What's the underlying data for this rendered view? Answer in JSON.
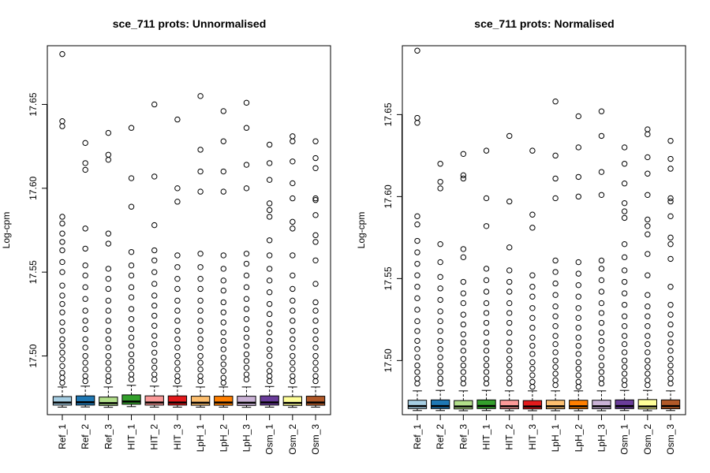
{
  "chart_data": [
    {
      "type": "boxplot",
      "title": "sce_711 prots: Unnormalised",
      "ylabel": "Log-cpm",
      "ylim": [
        17.465,
        17.685
      ],
      "yticks": [
        17.5,
        17.55,
        17.6,
        17.65
      ],
      "ytick_labels": [
        "17.50",
        "17.55",
        "17.60",
        "17.65"
      ],
      "categories": [
        "Ref_1",
        "Ref_2",
        "Ref_3",
        "HIT_1",
        "HIT_2",
        "HIT_3",
        "LpH_1",
        "LpH_2",
        "LpH_3",
        "Osm_1",
        "Osm_2",
        "Osm_3"
      ],
      "box_colors": [
        "#a6cee3",
        "#1f78b4",
        "#b2df8a",
        "#33a02c",
        "#fb9a99",
        "#e31a1c",
        "#fdbf6f",
        "#ff7f00",
        "#cab2d6",
        "#6a3d9a",
        "#ffff99",
        "#b15928"
      ],
      "grid": false,
      "series": [
        {
          "q1": 17.4707,
          "median": 17.4722,
          "q3": 17.4758,
          "whisker_low": 17.4695,
          "whisker_high": 17.4815,
          "outliers": [
            17.68,
            17.64,
            17.637,
            17.583,
            17.579,
            17.573,
            17.568,
            17.563,
            17.556,
            17.55,
            17.542,
            17.536,
            17.531,
            17.526,
            17.52,
            17.515,
            17.51,
            17.506,
            17.502,
            17.498,
            17.494,
            17.49,
            17.487,
            17.484
          ]
        },
        {
          "q1": 17.4707,
          "median": 17.4724,
          "q3": 17.4762,
          "whisker_low": 17.4696,
          "whisker_high": 17.482,
          "outliers": [
            17.627,
            17.615,
            17.611,
            17.576,
            17.564,
            17.554,
            17.548,
            17.541,
            17.534,
            17.527,
            17.521,
            17.516,
            17.51,
            17.505,
            17.5,
            17.496,
            17.492,
            17.488,
            17.485
          ]
        },
        {
          "q1": 17.4705,
          "median": 17.4719,
          "q3": 17.4755,
          "whisker_low": 17.4694,
          "whisker_high": 17.4815,
          "outliers": [
            17.633,
            17.62,
            17.617,
            17.573,
            17.567,
            17.552,
            17.546,
            17.54,
            17.533,
            17.527,
            17.521,
            17.515,
            17.51,
            17.505,
            17.5,
            17.496,
            17.492,
            17.488,
            17.485
          ]
        },
        {
          "q1": 17.4712,
          "median": 17.4728,
          "q3": 17.4768,
          "whisker_low": 17.4698,
          "whisker_high": 17.4825,
          "outliers": [
            17.636,
            17.606,
            17.589,
            17.562,
            17.554,
            17.548,
            17.541,
            17.535,
            17.528,
            17.522,
            17.516,
            17.511,
            17.506,
            17.501,
            17.497,
            17.493,
            17.489,
            17.486
          ]
        },
        {
          "q1": 17.4707,
          "median": 17.4722,
          "q3": 17.4762,
          "whisker_low": 17.4695,
          "whisker_high": 17.482,
          "outliers": [
            17.65,
            17.607,
            17.578,
            17.563,
            17.557,
            17.55,
            17.543,
            17.536,
            17.53,
            17.524,
            17.518,
            17.512,
            17.507,
            17.502,
            17.497,
            17.493,
            17.489,
            17.486
          ]
        },
        {
          "q1": 17.4707,
          "median": 17.4722,
          "q3": 17.4762,
          "whisker_low": 17.4695,
          "whisker_high": 17.482,
          "outliers": [
            17.641,
            17.6,
            17.592,
            17.56,
            17.553,
            17.546,
            17.54,
            17.533,
            17.527,
            17.521,
            17.515,
            17.51,
            17.505,
            17.5,
            17.496,
            17.492,
            17.488,
            17.485
          ]
        },
        {
          "q1": 17.4706,
          "median": 17.4721,
          "q3": 17.476,
          "whisker_low": 17.4695,
          "whisker_high": 17.4815,
          "outliers": [
            17.655,
            17.623,
            17.61,
            17.598,
            17.561,
            17.553,
            17.546,
            17.54,
            17.533,
            17.527,
            17.521,
            17.515,
            17.51,
            17.505,
            17.5,
            17.496,
            17.492,
            17.488,
            17.485
          ]
        },
        {
          "q1": 17.4706,
          "median": 17.4722,
          "q3": 17.476,
          "whisker_low": 17.4695,
          "whisker_high": 17.4815,
          "outliers": [
            17.646,
            17.628,
            17.61,
            17.598,
            17.56,
            17.552,
            17.545,
            17.539,
            17.532,
            17.526,
            17.52,
            17.514,
            17.509,
            17.504,
            17.499,
            17.495,
            17.491,
            17.487,
            17.484
          ]
        },
        {
          "q1": 17.4705,
          "median": 17.4721,
          "q3": 17.476,
          "whisker_low": 17.4694,
          "whisker_high": 17.4815,
          "outliers": [
            17.651,
            17.636,
            17.614,
            17.6,
            17.561,
            17.555,
            17.548,
            17.541,
            17.534,
            17.528,
            17.522,
            17.516,
            17.511,
            17.506,
            17.501,
            17.497,
            17.493,
            17.489,
            17.486
          ]
        },
        {
          "q1": 17.4707,
          "median": 17.4723,
          "q3": 17.4762,
          "whisker_low": 17.4695,
          "whisker_high": 17.4818,
          "outliers": [
            17.626,
            17.615,
            17.605,
            17.591,
            17.587,
            17.583,
            17.569,
            17.56,
            17.552,
            17.545,
            17.538,
            17.531,
            17.525,
            17.519,
            17.514,
            17.509,
            17.504,
            17.5,
            17.495,
            17.491,
            17.488,
            17.485
          ]
        },
        {
          "q1": 17.4705,
          "median": 17.472,
          "q3": 17.4758,
          "whisker_low": 17.4694,
          "whisker_high": 17.4815,
          "outliers": [
            17.631,
            17.628,
            17.616,
            17.603,
            17.594,
            17.58,
            17.576,
            17.56,
            17.548,
            17.54,
            17.533,
            17.527,
            17.521,
            17.515,
            17.51,
            17.505,
            17.5,
            17.496,
            17.492,
            17.488,
            17.485
          ]
        },
        {
          "q1": 17.4706,
          "median": 17.4722,
          "q3": 17.476,
          "whisker_low": 17.4695,
          "whisker_high": 17.4815,
          "outliers": [
            17.628,
            17.618,
            17.612,
            17.594,
            17.593,
            17.584,
            17.572,
            17.568,
            17.557,
            17.543,
            17.532,
            17.527,
            17.521,
            17.515,
            17.51,
            17.505,
            17.5,
            17.496,
            17.492,
            17.488,
            17.485
          ]
        }
      ]
    },
    {
      "type": "boxplot",
      "title": "sce_711 prots: Normalised",
      "ylabel": "Log-cpm",
      "ylim": [
        17.467,
        17.692
      ],
      "yticks": [
        17.5,
        17.55,
        17.6,
        17.65
      ],
      "ytick_labels": [
        "17.50",
        "17.55",
        "17.60",
        "17.65"
      ],
      "categories": [
        "Ref_1",
        "Ref_2",
        "Ref_3",
        "HIT_1",
        "HIT_2",
        "HIT_3",
        "LpH_1",
        "LpH_2",
        "LpH_3",
        "Osm_1",
        "Osm_2",
        "Osm_3"
      ],
      "box_colors": [
        "#a6cee3",
        "#1f78b4",
        "#b2df8a",
        "#33a02c",
        "#fb9a99",
        "#e31a1c",
        "#fdbf6f",
        "#ff7f00",
        "#cab2d6",
        "#6a3d9a",
        "#ffff99",
        "#b15928"
      ],
      "grid": false,
      "series": [
        {
          "q1": 17.4707,
          "median": 17.4722,
          "q3": 17.4758,
          "whisker_low": 17.4695,
          "whisker_high": 17.4815,
          "outliers": [
            17.689,
            17.648,
            17.645,
            17.588,
            17.583,
            17.573,
            17.566,
            17.559,
            17.552,
            17.545,
            17.538,
            17.531,
            17.524,
            17.518,
            17.512,
            17.507,
            17.502,
            17.497,
            17.493,
            17.489,
            17.486
          ]
        },
        {
          "q1": 17.4707,
          "median": 17.4722,
          "q3": 17.476,
          "whisker_low": 17.4695,
          "whisker_high": 17.4818,
          "outliers": [
            17.62,
            17.609,
            17.605,
            17.571,
            17.56,
            17.551,
            17.544,
            17.537,
            17.53,
            17.524,
            17.518,
            17.512,
            17.507,
            17.502,
            17.497,
            17.493,
            17.489,
            17.486
          ]
        },
        {
          "q1": 17.4705,
          "median": 17.472,
          "q3": 17.4756,
          "whisker_low": 17.4694,
          "whisker_high": 17.4815,
          "outliers": [
            17.626,
            17.613,
            17.611,
            17.568,
            17.563,
            17.548,
            17.541,
            17.535,
            17.528,
            17.522,
            17.516,
            17.511,
            17.506,
            17.501,
            17.497,
            17.493,
            17.489,
            17.486
          ]
        },
        {
          "q1": 17.4707,
          "median": 17.4723,
          "q3": 17.476,
          "whisker_low": 17.4695,
          "whisker_high": 17.4818,
          "outliers": [
            17.628,
            17.599,
            17.582,
            17.556,
            17.549,
            17.542,
            17.535,
            17.529,
            17.523,
            17.517,
            17.511,
            17.506,
            17.501,
            17.497,
            17.493,
            17.489,
            17.486
          ]
        },
        {
          "q1": 17.4706,
          "median": 17.4721,
          "q3": 17.4758,
          "whisker_low": 17.4694,
          "whisker_high": 17.4815,
          "outliers": [
            17.637,
            17.597,
            17.569,
            17.555,
            17.548,
            17.542,
            17.535,
            17.529,
            17.523,
            17.517,
            17.511,
            17.506,
            17.501,
            17.497,
            17.493,
            17.489,
            17.486
          ]
        },
        {
          "q1": 17.4705,
          "median": 17.472,
          "q3": 17.4756,
          "whisker_low": 17.4694,
          "whisker_high": 17.4815,
          "outliers": [
            17.628,
            17.589,
            17.581,
            17.552,
            17.545,
            17.539,
            17.532,
            17.526,
            17.52,
            17.514,
            17.509,
            17.504,
            17.499,
            17.495,
            17.491,
            17.487,
            17.484
          ]
        },
        {
          "q1": 17.4706,
          "median": 17.4721,
          "q3": 17.4758,
          "whisker_low": 17.4694,
          "whisker_high": 17.4815,
          "outliers": [
            17.658,
            17.625,
            17.611,
            17.599,
            17.561,
            17.554,
            17.547,
            17.54,
            17.533,
            17.527,
            17.521,
            17.515,
            17.51,
            17.505,
            17.5,
            17.496,
            17.492,
            17.488,
            17.485
          ]
        },
        {
          "q1": 17.4706,
          "median": 17.4721,
          "q3": 17.4758,
          "whisker_low": 17.4694,
          "whisker_high": 17.4815,
          "outliers": [
            17.649,
            17.63,
            17.612,
            17.6,
            17.56,
            17.553,
            17.546,
            17.539,
            17.532,
            17.526,
            17.52,
            17.514,
            17.509,
            17.504,
            17.499,
            17.495,
            17.491,
            17.487,
            17.484
          ]
        },
        {
          "q1": 17.4706,
          "median": 17.4721,
          "q3": 17.4758,
          "whisker_low": 17.4694,
          "whisker_high": 17.4815,
          "outliers": [
            17.652,
            17.637,
            17.615,
            17.601,
            17.561,
            17.556,
            17.549,
            17.542,
            17.535,
            17.529,
            17.523,
            17.517,
            17.512,
            17.507,
            17.502,
            17.497,
            17.493,
            17.489,
            17.486
          ]
        },
        {
          "q1": 17.4707,
          "median": 17.4722,
          "q3": 17.476,
          "whisker_low": 17.4695,
          "whisker_high": 17.4818,
          "outliers": [
            17.63,
            17.62,
            17.608,
            17.596,
            17.591,
            17.587,
            17.571,
            17.563,
            17.555,
            17.548,
            17.541,
            17.534,
            17.527,
            17.521,
            17.515,
            17.51,
            17.505,
            17.5,
            17.496,
            17.492,
            17.488,
            17.485
          ]
        },
        {
          "q1": 17.4705,
          "median": 17.472,
          "q3": 17.4762,
          "whisker_low": 17.4694,
          "whisker_high": 17.4818,
          "outliers": [
            17.641,
            17.638,
            17.624,
            17.614,
            17.601,
            17.586,
            17.582,
            17.577,
            17.565,
            17.552,
            17.54,
            17.533,
            17.527,
            17.521,
            17.515,
            17.51,
            17.505,
            17.5,
            17.496,
            17.492,
            17.488,
            17.485
          ]
        },
        {
          "q1": 17.4706,
          "median": 17.4722,
          "q3": 17.476,
          "whisker_low": 17.4695,
          "whisker_high": 17.4815,
          "outliers": [
            17.634,
            17.623,
            17.617,
            17.599,
            17.597,
            17.588,
            17.575,
            17.571,
            17.562,
            17.545,
            17.534,
            17.528,
            17.522,
            17.516,
            17.511,
            17.506,
            17.501,
            17.497,
            17.493,
            17.489,
            17.486
          ]
        }
      ]
    }
  ]
}
